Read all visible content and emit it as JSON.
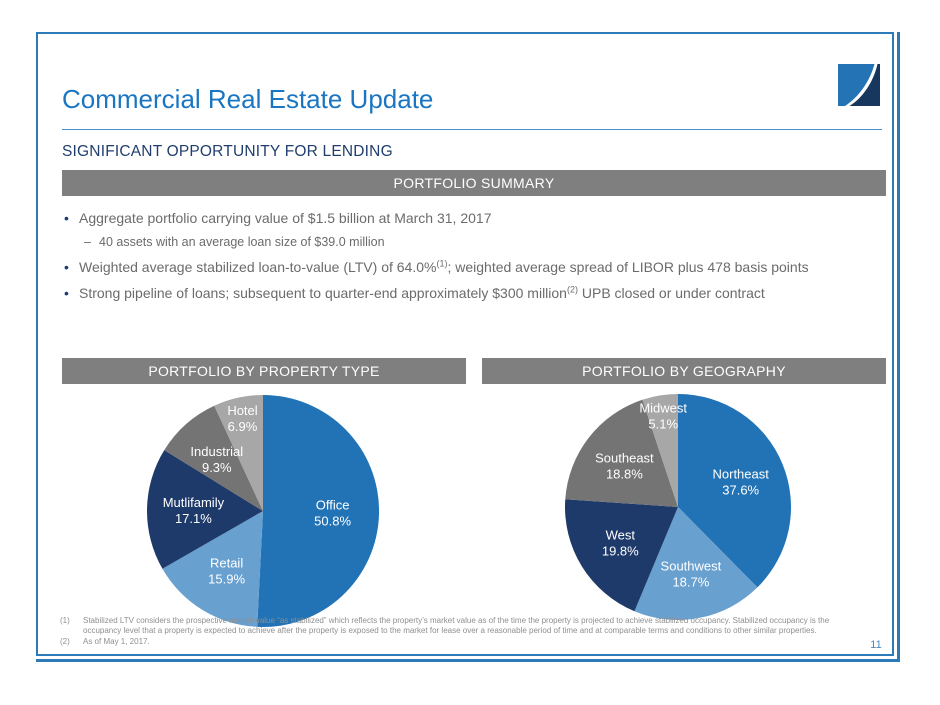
{
  "slide": {
    "title": "Commercial Real Estate Update",
    "subtitle": "SIGNIFICANT OPPORTUNITY FOR LENDING",
    "page_number": "11"
  },
  "summary": {
    "header": "PORTFOLIO SUMMARY",
    "bullets": [
      {
        "level": 1,
        "segments": [
          {
            "text": "Aggregate portfolio carrying value of $1.5 billion at March 31, 2017"
          }
        ]
      },
      {
        "level": 2,
        "segments": [
          {
            "text": "40 assets with an average loan size of $39.0 million"
          }
        ]
      },
      {
        "level": 1,
        "segments": [
          {
            "text": "Weighted average stabilized loan-to-value (LTV) of 64.0%"
          },
          {
            "text": "(1)",
            "sup": true
          },
          {
            "text": "; weighted average spread of LIBOR plus 478 basis points"
          }
        ]
      },
      {
        "level": 1,
        "segments": [
          {
            "text": "Strong pipeline of loans; subsequent to quarter-end approximately $300 million"
          },
          {
            "text": "(2)",
            "sup": true
          },
          {
            "text": " UPB closed or under contract"
          }
        ]
      }
    ]
  },
  "chart_data": [
    {
      "type": "pie",
      "title": "PORTFOLIO BY PROPERTY TYPE",
      "labels": [
        "Office",
        "Retail",
        "Mutlifamily",
        "Industrial",
        "Hotel"
      ],
      "values": [
        50.8,
        15.9,
        17.1,
        9.3,
        6.9
      ],
      "colors": [
        "#2273b6",
        "#68a0d0",
        "#1e3a6a",
        "#747474",
        "#a7a7a7"
      ],
      "start_angle_deg": 0,
      "direction": "clockwise",
      "label_style": "name-over-percent-inside-slice"
    },
    {
      "type": "pie",
      "title": "PORTFOLIO BY GEOGRAPHY",
      "labels": [
        "Northeast",
        "Southwest",
        "West",
        "Southeast",
        "Midwest"
      ],
      "values": [
        37.6,
        18.7,
        19.8,
        18.8,
        5.1
      ],
      "colors": [
        "#2273b6",
        "#68a0d0",
        "#1e3a6a",
        "#747474",
        "#a7a7a7"
      ],
      "start_angle_deg": 0,
      "direction": "clockwise",
      "label_style": "name-over-percent-inside-slice"
    }
  ],
  "footnotes": [
    {
      "num": "(1)",
      "text": "Stabilized LTV considers the prospective market value “as stabilized” which reflects the property’s market value as of the time the property is projected to achieve stabilized occupancy. Stabilized occupancy is the occupancy level that a property is expected to achieve after the property is exposed to the market for lease over a reasonable period of time and at comparable terms and conditions to other similar properties."
    },
    {
      "num": "(2)",
      "text": "As of May 1, 2017."
    }
  ],
  "colors": {
    "accent_blue": "#1a76c2",
    "dark_navy": "#1f3e6e",
    "header_bar_gray": "#7f7f7f",
    "frame_blue": "#2d7ab9",
    "body_text_gray": "#6b6b6b"
  }
}
